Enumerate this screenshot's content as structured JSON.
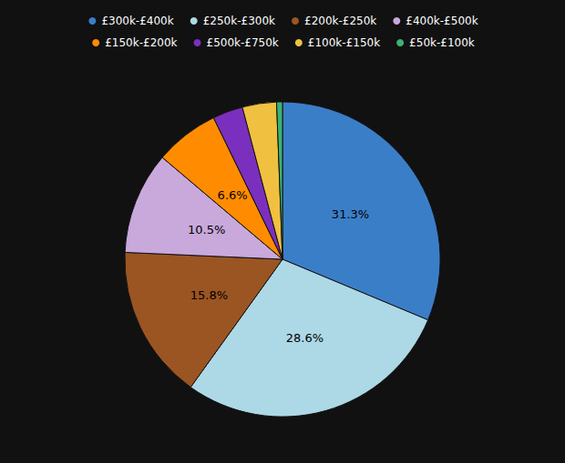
{
  "chart_data": {
    "type": "pie",
    "categories": [
      "£300k-£400k",
      "£250k-£300k",
      "£200k-£250k",
      "£400k-£500k",
      "£150k-£200k",
      "£500k-£750k",
      "£100k-£150k",
      "£50k-£100k"
    ],
    "values": [
      31.3,
      28.6,
      15.8,
      10.5,
      6.6,
      3.1,
      3.5,
      0.6
    ],
    "value_labels": [
      "31.3%",
      "28.6%",
      "15.8%",
      "10.5%",
      "6.6%",
      null,
      null,
      null
    ],
    "data_labels": true,
    "colors": [
      "#3B7EC8",
      "#ADD8E6",
      "#9B5523",
      "#C9A8DC",
      "#FF8C00",
      "#7B2FBE",
      "#F0C040",
      "#3CB371"
    ],
    "legend": "top"
  }
}
